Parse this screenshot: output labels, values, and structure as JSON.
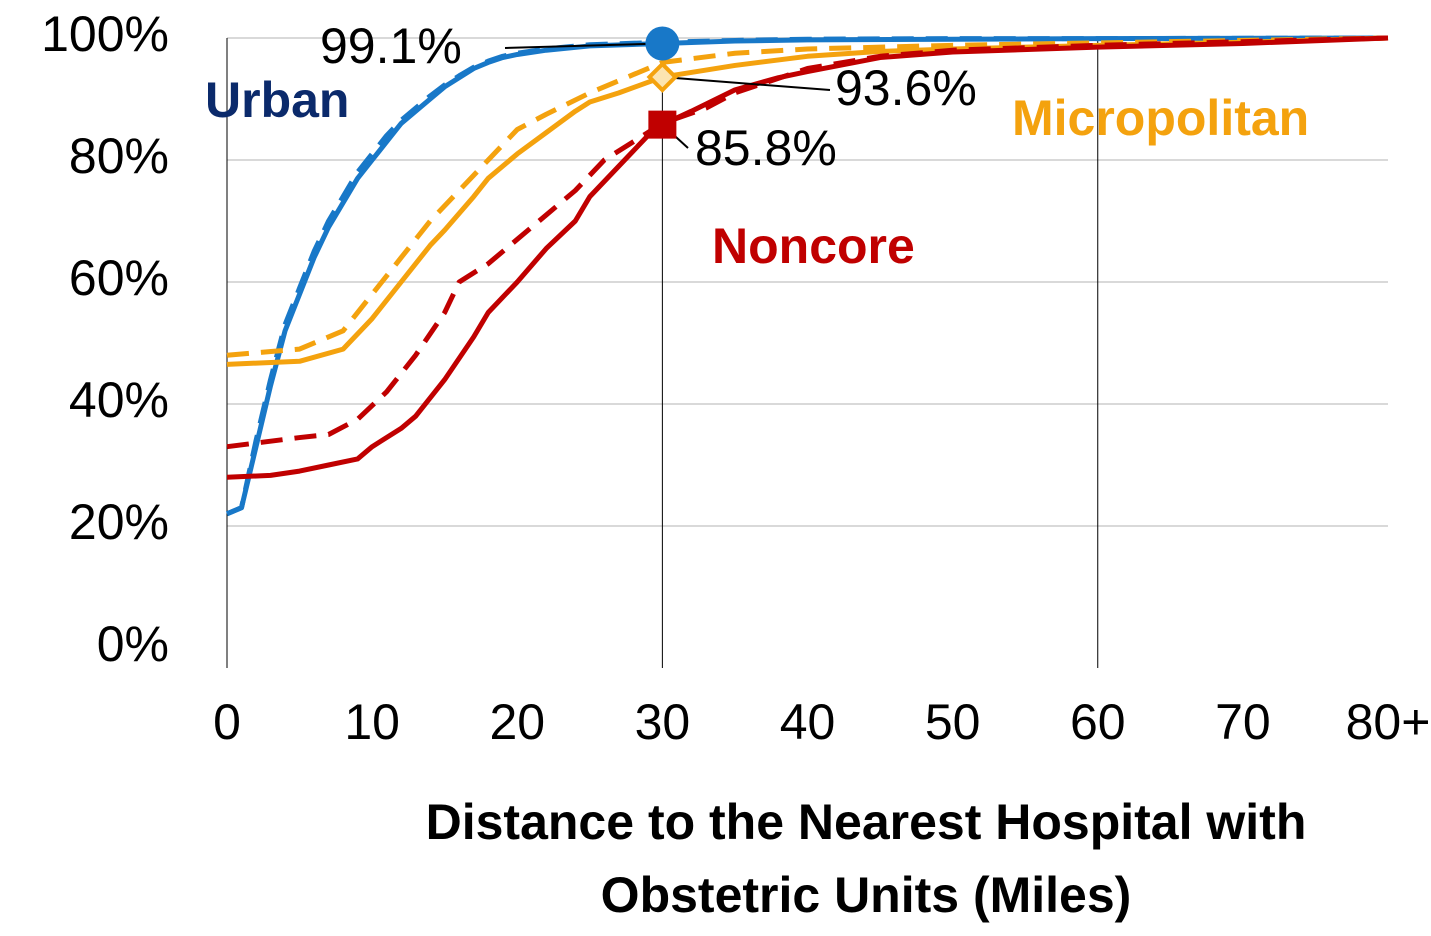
{
  "chart_data": {
    "type": "line",
    "xlabel": [
      "Distance to the Nearest Hospital with",
      "Obstetric Units (Miles)"
    ],
    "xlim": [
      0,
      80
    ],
    "xticks": [
      0,
      10,
      20,
      30,
      40,
      50,
      60,
      70,
      {
        "value": 80,
        "label": "80+"
      }
    ],
    "ylim": [
      0,
      100
    ],
    "yticks": [
      {
        "value": 0,
        "label": "0%"
      },
      {
        "value": 20,
        "label": "20%"
      },
      {
        "value": 40,
        "label": "40%"
      },
      {
        "value": 60,
        "label": "60%"
      },
      {
        "value": 80,
        "label": "80%"
      },
      {
        "value": 100,
        "label": "100%"
      }
    ],
    "grid": true,
    "x_gridlines": [
      30,
      60
    ],
    "series": [
      {
        "name": "Urban",
        "name_color": "#0b2a6b",
        "color": "#1878c8",
        "dashed": false,
        "x": [
          0,
          1,
          2,
          3,
          4,
          5,
          6,
          7,
          8,
          9,
          10,
          11,
          12,
          13,
          14,
          15,
          16,
          17,
          18,
          19,
          20,
          22,
          25,
          30,
          35,
          40,
          50,
          60,
          80
        ],
        "values": [
          22,
          23,
          33,
          43,
          52,
          58,
          64,
          69,
          73,
          77,
          80,
          83,
          86,
          88,
          90,
          92,
          93.5,
          95,
          96,
          96.8,
          97.3,
          98,
          98.7,
          99.1,
          99.5,
          99.7,
          99.8,
          99.9,
          100
        ]
      },
      {
        "color": "#1878c8",
        "dashed": true,
        "x": [
          0,
          1,
          2,
          3,
          4,
          5,
          6,
          7,
          8,
          9,
          10,
          11,
          12,
          13,
          14,
          15,
          16,
          17,
          18,
          19,
          20,
          22,
          25,
          30,
          35,
          40,
          50,
          60,
          80
        ],
        "values": [
          22,
          23,
          34,
          44,
          53,
          59,
          65,
          70,
          74,
          78,
          81,
          84,
          86.5,
          88.5,
          90.5,
          92.3,
          93.8,
          95.2,
          96.2,
          97,
          97.5,
          98.2,
          98.9,
          99.3,
          99.6,
          99.8,
          99.9,
          99.9,
          100
        ]
      },
      {
        "name": "Micropolitan",
        "name_color": "#f4a20e",
        "color": "#f4a20e",
        "dashed": false,
        "x": [
          0,
          5,
          8,
          10,
          12,
          14,
          15,
          17,
          18,
          20,
          22,
          24,
          25,
          27,
          30,
          35,
          40,
          45,
          50,
          60,
          70,
          80
        ],
        "values": [
          46.5,
          47,
          49,
          54,
          60,
          66,
          68.5,
          74,
          77,
          81,
          84.5,
          88,
          89.5,
          91,
          93.6,
          95.5,
          97,
          97.8,
          98.2,
          98.8,
          99.3,
          100
        ]
      },
      {
        "color": "#f4a20e",
        "dashed": true,
        "x": [
          0,
          5,
          8,
          10,
          12,
          14,
          16,
          18,
          20,
          22,
          25,
          28,
          30,
          35,
          40,
          50,
          60,
          80
        ],
        "values": [
          48,
          49,
          52,
          58,
          64,
          70,
          75,
          80,
          85,
          87.5,
          91,
          94,
          96,
          97.5,
          98.2,
          98.8,
          99.2,
          100
        ]
      },
      {
        "name": "Noncore",
        "name_color": "#c00000",
        "color": "#c00000",
        "dashed": false,
        "x": [
          0,
          3,
          5,
          7,
          9,
          10,
          12,
          13,
          15,
          17,
          18,
          20,
          22,
          24,
          25,
          27,
          29,
          30,
          32,
          35,
          38,
          40,
          45,
          50,
          60,
          70,
          80
        ],
        "values": [
          28,
          28.3,
          29,
          30,
          31,
          33,
          36,
          38,
          44,
          51,
          55,
          60,
          65.5,
          70,
          74,
          79,
          84,
          85.8,
          88,
          91.5,
          93.5,
          94.5,
          96.8,
          97.7,
          98.5,
          99.1,
          100
        ]
      },
      {
        "color": "#c00000",
        "dashed": true,
        "x": [
          0,
          5,
          7,
          9,
          11,
          13,
          15,
          16,
          18,
          20,
          22,
          24,
          26,
          28,
          30,
          33,
          35,
          40,
          45,
          50,
          60,
          80
        ],
        "values": [
          33,
          34.5,
          35,
          37.5,
          42,
          48,
          55,
          60,
          63,
          67,
          71,
          75,
          80,
          83,
          86,
          88.5,
          91,
          95,
          97,
          98,
          98.8,
          100
        ]
      }
    ],
    "annotations": [
      {
        "text": "99.1%",
        "x": 30,
        "y": 99.1,
        "marker": "circle",
        "color": "#1878c8"
      },
      {
        "text": "93.6%",
        "x": 30,
        "y": 93.6,
        "marker": "diamond",
        "color": "#f4a20e"
      },
      {
        "text": "85.8%",
        "x": 30,
        "y": 85.8,
        "marker": "square",
        "color": "#c00000"
      }
    ]
  }
}
